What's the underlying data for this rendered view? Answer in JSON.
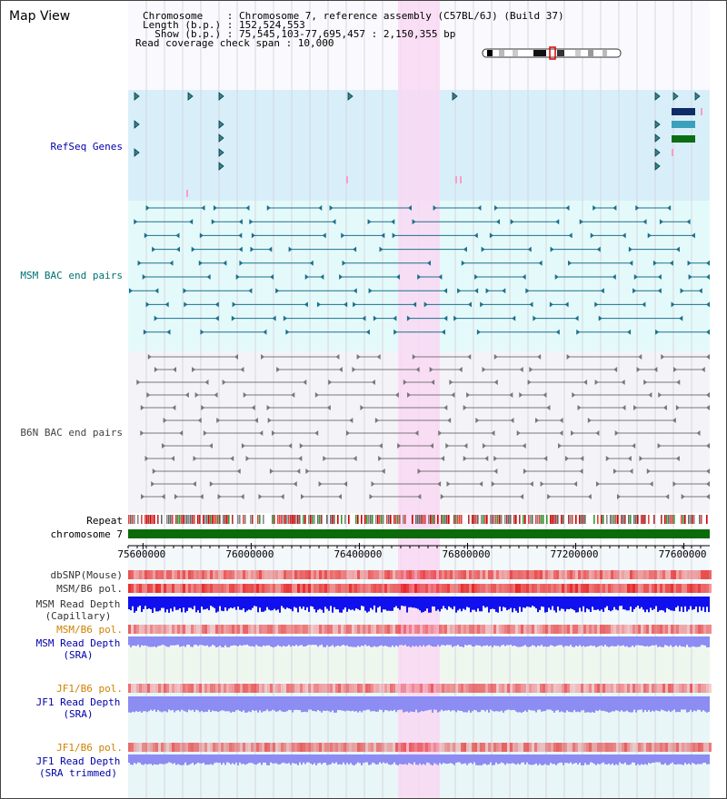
{
  "header": {
    "title": "Map View",
    "chromosome_line": "Chromosome    : Chromosome 7, reference assembly (C57BL/6J) (Build 37)",
    "length_line": "Length (b.p.) : 152,524,553",
    "show_line": "  Show (b.p.) : 75,545,103-77,695,457 : 2,150,355 bp",
    "span_line": "Read coverage check span : 10,000"
  },
  "tracks": {
    "refseq": "RefSeq Genes",
    "msm_bac": "MSM BAC end pairs",
    "b6n_bac": "B6N BAC end pairs",
    "repeat": "Repeat",
    "chromosome": "chromosome 7"
  },
  "axis": {
    "ticks": [
      {
        "label": "75600000",
        "value": 75600000
      },
      {
        "label": "76000000",
        "value": 76000000
      },
      {
        "label": "76400000",
        "value": 76400000
      },
      {
        "label": "76800000",
        "value": 76800000
      },
      {
        "label": "77200000",
        "value": 77200000
      },
      {
        "label": "77600000",
        "value": 77600000
      }
    ]
  },
  "lower_tracks": {
    "dbsnp": "dbSNP(Mouse)",
    "msm_b6_pol": "MSM/B6 pol.",
    "msm_read_depth_cap_1": "MSM Read Depth",
    "msm_read_depth_cap_2": "(Capillary)",
    "msm_b6_pol_2": "MSM/B6 pol.",
    "msm_read_depth_sra_1": "MSM Read Depth",
    "msm_read_depth_sra_2": "(SRA)",
    "jf1_b6_pol": "JF1/B6 pol.",
    "jf1_read_depth_sra_1": "JF1 Read Depth",
    "jf1_read_depth_sra_2": "(SRA)",
    "jf1_b6_pol_2": "JF1/B6 pol.",
    "jf1_read_depth_trim_1": "JF1 Read Depth",
    "jf1_read_depth_trim_2": "(SRA trimmed)"
  },
  "colors": {
    "refseq_bg": "#d8effa",
    "msm_bg": "#e4fafa",
    "b6n_bg": "#f4f4f8",
    "highlight": "#f9d8f3",
    "msm_color": "#1d6f8c",
    "b6n_color": "#777777",
    "chromosome": "#0b6b0b",
    "depth_blue": "#1010ee",
    "depth_light": "#8c8cf2",
    "label_blue": "#0000aa",
    "label_teal": "#007070",
    "label_orange": "#d08000"
  }
}
